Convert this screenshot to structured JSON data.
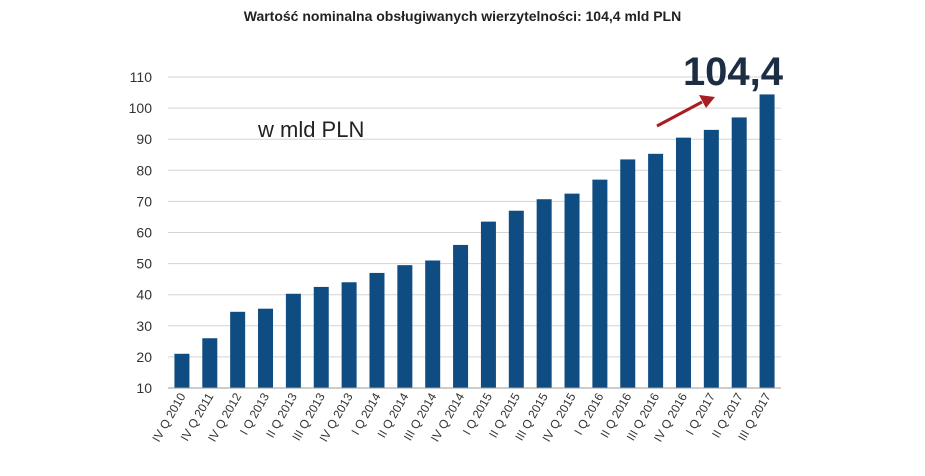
{
  "chart_data": {
    "type": "bar",
    "title": "Wartość nominalna obsługiwanych wierzytelności: 104,4 mld PLN",
    "unit_label": "w mld PLN",
    "highlight_value_label": "104,4",
    "categories": [
      "IV Q 2010",
      "IV Q 2011",
      "IV Q 2012",
      "I Q 2013",
      "II Q 2013",
      "III Q 2013",
      "IV Q 2013",
      "I Q 2014",
      "II Q 2014",
      "III Q 2014",
      "IV Q 2014",
      "I Q 2015",
      "II Q 2015",
      "III Q 2015",
      "IV Q 2015",
      "I Q 2016",
      "II Q 2016",
      "III Q 2016",
      "IV Q 2016",
      "I Q 2017",
      "II Q 2017",
      "III Q 2017"
    ],
    "values": [
      21,
      26,
      34.5,
      35.5,
      40.3,
      42.5,
      44,
      47,
      49.5,
      51,
      56,
      63.5,
      67,
      70.7,
      72.5,
      77,
      83.5,
      85.3,
      90.5,
      93,
      97,
      104.4
    ],
    "ylim": [
      10,
      110
    ],
    "yticks": [
      "10",
      "20",
      "30",
      "40",
      "50",
      "60",
      "70",
      "80",
      "90",
      "100",
      "110"
    ],
    "grid": true,
    "colors": {
      "bar": "#0f4c81",
      "arrow": "#a71d22",
      "highlight_text": "#1d2d44",
      "axis_text": "#333333",
      "grid": "#d3d3d3"
    }
  }
}
